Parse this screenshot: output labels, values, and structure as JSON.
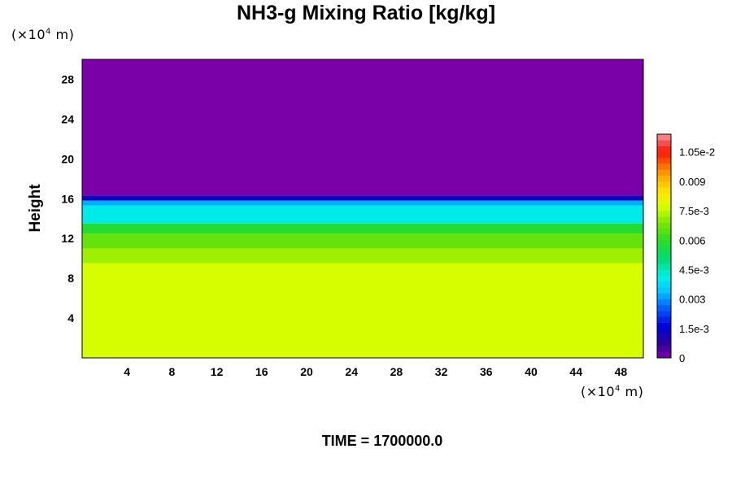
{
  "chart_data": {
    "type": "heatmap",
    "title": "NH3-g Mixing Ratio [kg/kg]",
    "ylabel": "Height",
    "x_unit_prefix": "(×10",
    "x_unit_exp": "4",
    "x_unit_suffix": " m)",
    "y_unit_prefix": "(×10",
    "y_unit_exp": "4",
    "y_unit_suffix": " m)",
    "footer": "TIME = 1700000.0",
    "xlim": [
      0,
      50
    ],
    "ylim": [
      0,
      30
    ],
    "xticks": [
      "4",
      "8",
      "12",
      "16",
      "20",
      "24",
      "28",
      "32",
      "36",
      "40",
      "44",
      "48"
    ],
    "yticks": [
      "4",
      "8",
      "12",
      "16",
      "20",
      "24",
      "28"
    ],
    "colorbar": {
      "range": [
        0,
        0.0114
      ],
      "tick_labels": [
        "0",
        "1.5e-3",
        "0.003",
        "4.5e-3",
        "0.006",
        "7.5e-3",
        "0.009",
        "1.05e-2"
      ],
      "tick_values": [
        0,
        0.0015,
        0.003,
        0.0045,
        0.006,
        0.0075,
        0.009,
        0.0105
      ]
    },
    "layers": [
      {
        "y0": 16.3,
        "y1": 30,
        "value": 0.0
      },
      {
        "y0": 15.8,
        "y1": 16.3,
        "value": 0.0012
      },
      {
        "y0": 15.3,
        "y1": 15.8,
        "value": 0.0032
      },
      {
        "y0": 13.5,
        "y1": 15.3,
        "value": 0.004
      },
      {
        "y0": 12.5,
        "y1": 13.5,
        "value": 0.0058
      },
      {
        "y0": 11.0,
        "y1": 12.5,
        "value": 0.0066
      },
      {
        "y0": 9.5,
        "y1": 11.0,
        "value": 0.0072
      },
      {
        "y0": 0,
        "y1": 9.5,
        "value": 0.0077
      }
    ]
  }
}
